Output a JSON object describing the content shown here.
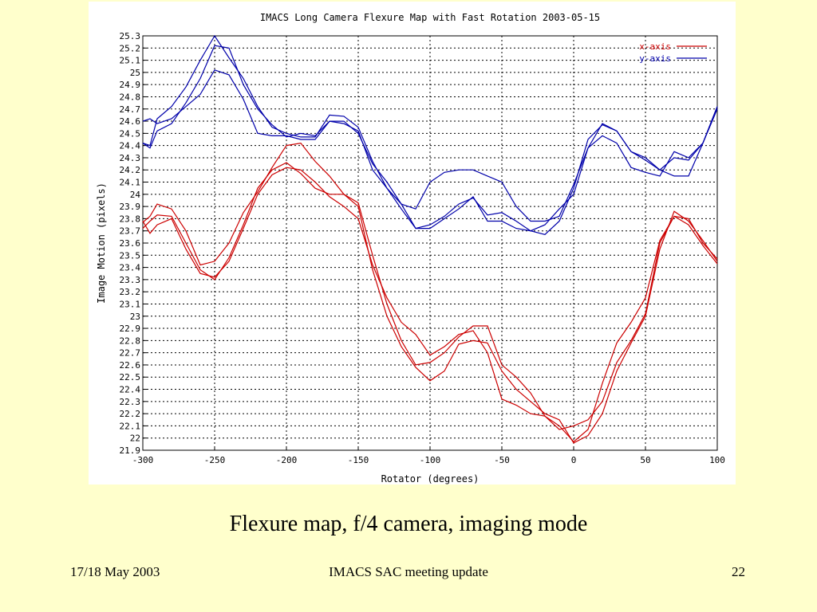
{
  "slide": {
    "caption": "Flexure map, f/4 camera, imaging mode",
    "footer_left": "17/18 May 2003",
    "footer_center": "IMACS SAC meeting update",
    "footer_right": "22",
    "background_color": "#ffffcc"
  },
  "chart_data": {
    "type": "line",
    "title": "IMACS Long Camera Flexure Map with Fast Rotation 2003-05-15",
    "xlabel": "Rotator (degrees)",
    "ylabel": "Image Motion (pixels)",
    "xlim": [
      -300,
      100
    ],
    "ylim": [
      21.9,
      25.3
    ],
    "xticks": [
      -300,
      -250,
      -200,
      -150,
      -100,
      -50,
      0,
      50,
      100
    ],
    "xtick_labels": [
      "-300",
      "-250",
      "-200",
      "-150",
      "-100",
      "-50",
      "0",
      "50",
      "100"
    ],
    "yticks": [
      21.9,
      22,
      22.1,
      22.2,
      22.3,
      22.4,
      22.5,
      22.6,
      22.7,
      22.8,
      22.9,
      23,
      23.1,
      23.2,
      23.3,
      23.4,
      23.5,
      23.6,
      23.7,
      23.8,
      23.9,
      24,
      24.1,
      24.2,
      24.3,
      24.4,
      24.5,
      24.6,
      24.7,
      24.8,
      24.9,
      25,
      25.1,
      25.2,
      25.3
    ],
    "ytick_labels": [
      "21.9",
      "22",
      "22.1",
      "22.2",
      "22.3",
      "22.4",
      "22.5",
      "22.6",
      "22.7",
      "22.8",
      "22.9",
      "23",
      "23.1",
      "23.2",
      "23.3",
      "23.4",
      "23.5",
      "23.6",
      "23.7",
      "23.8",
      "23.9",
      "24",
      "24.1",
      "24.2",
      "24.3",
      "24.4",
      "24.5",
      "24.6",
      "24.7",
      "24.8",
      "24.9",
      "25",
      "25.1",
      "25.2",
      "25.3"
    ],
    "grid": true,
    "legend_position": "top-right",
    "legend": [
      {
        "label": "x-axis",
        "color": "#cc0000"
      },
      {
        "label": "y-axis",
        "color": "#0000aa"
      }
    ],
    "series": [
      {
        "name": "x-axis",
        "color": "#cc0000",
        "x": [
          -300,
          -295,
          -290,
          -280,
          -270,
          -260,
          -250,
          -240,
          -230,
          -220,
          -210,
          -200,
          -190,
          -180,
          -170,
          -160,
          -150,
          -140,
          -130,
          -120,
          -110,
          -100,
          -90,
          -80,
          -70,
          -60,
          -50,
          -40,
          -30,
          -20,
          -10,
          0,
          10,
          20,
          30,
          40,
          50,
          60,
          70,
          80,
          90,
          100
        ],
        "y": [
          23.77,
          23.82,
          23.92,
          23.88,
          23.7,
          23.42,
          23.45,
          23.6,
          23.85,
          24.02,
          24.22,
          24.4,
          24.42,
          24.27,
          24.15,
          24.0,
          23.93,
          23.5,
          23.1,
          22.8,
          22.6,
          22.62,
          22.7,
          22.83,
          22.92,
          22.92,
          22.6,
          22.5,
          22.37,
          22.18,
          22.1,
          21.97,
          22.07,
          22.45,
          22.78,
          22.95,
          23.15,
          23.62,
          23.82,
          23.8,
          23.6,
          23.47
        ]
      },
      {
        "name": "x-axis",
        "color": "#cc0000",
        "x": [
          -300,
          -295,
          -290,
          -280,
          -270,
          -260,
          -250,
          -240,
          -230,
          -220,
          -210,
          -200,
          -190,
          -180,
          -170,
          -160,
          -150,
          -140,
          -130,
          -120,
          -110,
          -100,
          -90,
          -80,
          -70,
          -60,
          -50,
          -40,
          -30,
          -20,
          -10,
          0,
          10,
          20,
          30,
          40,
          50,
          60,
          70,
          80,
          90,
          100
        ],
        "y": [
          23.72,
          23.78,
          23.83,
          23.82,
          23.6,
          23.38,
          23.3,
          23.48,
          23.75,
          24.05,
          24.2,
          24.26,
          24.17,
          24.05,
          24.0,
          24.0,
          23.9,
          23.38,
          23.0,
          22.75,
          22.58,
          22.47,
          22.55,
          22.77,
          22.8,
          22.78,
          22.55,
          22.4,
          22.3,
          22.2,
          22.15,
          21.96,
          22.02,
          22.2,
          22.55,
          22.78,
          23.0,
          23.55,
          23.86,
          23.78,
          23.62,
          23.45
        ]
      },
      {
        "name": "x-axis",
        "color": "#cc0000",
        "x": [
          -300,
          -295,
          -290,
          -280,
          -270,
          -260,
          -250,
          -240,
          -230,
          -220,
          -210,
          -200,
          -190,
          -180,
          -170,
          -160,
          -150,
          -140,
          -130,
          -120,
          -110,
          -100,
          -90,
          -80,
          -70,
          -60,
          -50,
          -40,
          -30,
          -20,
          -10,
          0,
          10,
          20,
          30,
          40,
          50,
          60,
          70,
          80,
          90,
          100
        ],
        "y": [
          23.78,
          23.68,
          23.75,
          23.8,
          23.55,
          23.35,
          23.32,
          23.45,
          23.72,
          24.0,
          24.16,
          24.22,
          24.2,
          24.1,
          23.98,
          23.9,
          23.8,
          23.42,
          23.15,
          22.95,
          22.85,
          22.68,
          22.75,
          22.85,
          22.88,
          22.7,
          22.32,
          22.27,
          22.2,
          22.18,
          22.07,
          22.1,
          22.15,
          22.3,
          22.62,
          22.8,
          23.02,
          23.6,
          23.82,
          23.75,
          23.58,
          23.43
        ]
      },
      {
        "name": "y-axis",
        "color": "#0000aa",
        "x": [
          -300,
          -295,
          -290,
          -280,
          -270,
          -260,
          -250,
          -240,
          -230,
          -220,
          -210,
          -200,
          -190,
          -180,
          -170,
          -160,
          -150,
          -140,
          -130,
          -120,
          -110,
          -100,
          -90,
          -80,
          -70,
          -60,
          -50,
          -40,
          -30,
          -20,
          -10,
          0,
          10,
          20,
          30,
          40,
          50,
          60,
          70,
          80,
          90,
          100
        ],
        "y": [
          24.42,
          24.4,
          24.62,
          24.72,
          24.88,
          25.1,
          25.3,
          25.12,
          24.95,
          24.72,
          24.55,
          24.5,
          24.47,
          24.47,
          24.65,
          24.64,
          24.55,
          24.27,
          24.05,
          23.88,
          23.72,
          23.75,
          23.82,
          23.92,
          23.97,
          23.83,
          23.85,
          23.78,
          23.7,
          23.67,
          23.78,
          24.05,
          24.45,
          24.57,
          24.52,
          24.35,
          24.3,
          24.2,
          24.15,
          24.15,
          24.42,
          24.72
        ]
      },
      {
        "name": "y-axis",
        "color": "#0000aa",
        "x": [
          -300,
          -295,
          -290,
          -280,
          -270,
          -260,
          -250,
          -240,
          -230,
          -220,
          -210,
          -200,
          -190,
          -180,
          -170,
          -160,
          -150,
          -140,
          -130,
          -120,
          -110,
          -100,
          -90,
          -80,
          -70,
          -60,
          -50,
          -40,
          -30,
          -20,
          -10,
          0,
          10,
          20,
          30,
          40,
          50,
          60,
          70,
          80,
          90,
          100
        ],
        "y": [
          24.42,
          24.38,
          24.52,
          24.58,
          24.75,
          24.95,
          25.22,
          25.2,
          24.9,
          24.7,
          24.57,
          24.47,
          24.5,
          24.48,
          24.6,
          24.6,
          24.5,
          24.25,
          24.1,
          23.92,
          23.72,
          23.72,
          23.8,
          23.88,
          23.98,
          23.78,
          23.78,
          23.72,
          23.7,
          23.75,
          23.88,
          24.0,
          24.38,
          24.58,
          24.52,
          24.35,
          24.28,
          24.2,
          24.3,
          24.28,
          24.42,
          24.7
        ]
      },
      {
        "name": "y-axis",
        "color": "#0000aa",
        "x": [
          -300,
          -295,
          -290,
          -280,
          -270,
          -260,
          -250,
          -240,
          -230,
          -220,
          -210,
          -200,
          -190,
          -180,
          -170,
          -160,
          -150,
          -140,
          -130,
          -120,
          -110,
          -100,
          -90,
          -80,
          -70,
          -60,
          -50,
          -40,
          -30,
          -20,
          -10,
          0,
          10,
          20,
          30,
          40,
          50,
          60,
          70,
          80,
          90,
          100
        ],
        "y": [
          24.6,
          24.62,
          24.58,
          24.62,
          24.72,
          24.82,
          25.02,
          24.98,
          24.78,
          24.5,
          24.48,
          24.48,
          24.45,
          24.45,
          24.6,
          24.58,
          24.52,
          24.2,
          24.05,
          23.92,
          23.88,
          24.1,
          24.18,
          24.2,
          24.2,
          24.15,
          24.1,
          23.9,
          23.78,
          23.78,
          23.82,
          24.08,
          24.38,
          24.48,
          24.42,
          24.22,
          24.18,
          24.15,
          24.35,
          24.3,
          24.42,
          24.72
        ]
      }
    ]
  }
}
